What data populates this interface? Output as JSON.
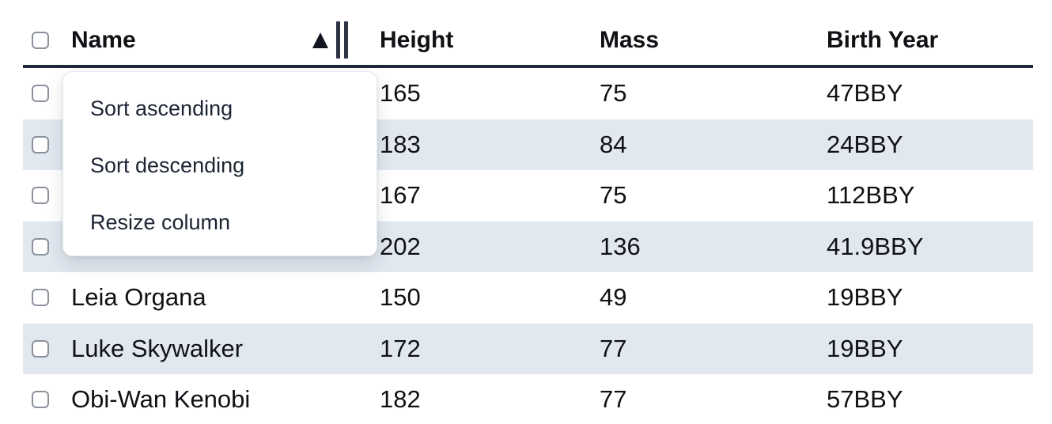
{
  "table": {
    "columns": [
      {
        "label": "Name",
        "sorted": "ascending"
      },
      {
        "label": "Height"
      },
      {
        "label": "Mass"
      },
      {
        "label": "Birth Year"
      }
    ],
    "rows": [
      {
        "name": "",
        "height": "165",
        "mass": "75",
        "birth_year": "47BBY",
        "checked": false
      },
      {
        "name": "",
        "height": "183",
        "mass": "84",
        "birth_year": "24BBY",
        "checked": false
      },
      {
        "name": "",
        "height": "167",
        "mass": "75",
        "birth_year": "112BBY",
        "checked": false
      },
      {
        "name": "",
        "height": "202",
        "mass": "136",
        "birth_year": "41.9BBY",
        "checked": false
      },
      {
        "name": "Leia Organa",
        "height": "150",
        "mass": "49",
        "birth_year": "19BBY",
        "checked": false
      },
      {
        "name": "Luke Skywalker",
        "height": "172",
        "mass": "77",
        "birth_year": "19BBY",
        "checked": false
      },
      {
        "name": "Obi-Wan Kenobi",
        "height": "182",
        "mass": "77",
        "birth_year": "57BBY",
        "checked": false
      }
    ],
    "select_all_checked": false
  },
  "context_menu": {
    "items": [
      {
        "label": "Sort ascending"
      },
      {
        "label": "Sort descending"
      },
      {
        "label": "Resize column"
      }
    ]
  },
  "icons": {
    "sort_indicator": "sort-ascending-triangle",
    "resize_handle": "double-vertical-bars"
  },
  "colors": {
    "row_stripe": "#e2e8f0",
    "header_border": "#1e293b",
    "text": "#0f1115",
    "menu_text": "#1c2433",
    "checkbox_border": "#8b919c"
  }
}
